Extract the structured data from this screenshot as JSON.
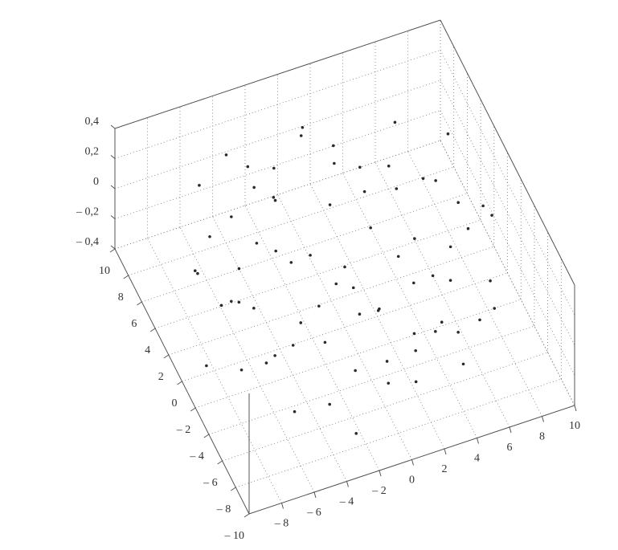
{
  "chart_data": {
    "type": "scatter3d",
    "color": "#2a2a2a",
    "grid": true,
    "xlim": [
      -10,
      10
    ],
    "ylim": [
      -10,
      10
    ],
    "zlim": [
      -0.4,
      0.4
    ],
    "xticks": [
      {
        "value": -8,
        "label": "– 8"
      },
      {
        "value": -6,
        "label": "– 6"
      },
      {
        "value": -4,
        "label": "– 4"
      },
      {
        "value": -2,
        "label": "– 2"
      },
      0,
      2,
      4,
      6,
      8,
      10
    ],
    "yticks": [
      10,
      8,
      6,
      4,
      2,
      0,
      {
        "value": -2,
        "label": "– 2"
      },
      {
        "value": -4,
        "label": "– 4"
      },
      {
        "value": -6,
        "label": "– 6"
      },
      {
        "value": -8,
        "label": "– 8"
      },
      {
        "value": -10,
        "label": "– 10"
      }
    ],
    "zticks": [
      {
        "value": 0.4,
        "label": "0,4"
      },
      {
        "value": 0.2,
        "label": "0,2"
      },
      0,
      {
        "value": -0.2,
        "label": "– 0,2"
      },
      {
        "value": -0.4,
        "label": "– 0,4"
      }
    ],
    "x": [
      8.5,
      8.31,
      7.77,
      6.88,
      5.69,
      4.25,
      2.63,
      0.89,
      -0.89,
      -2.63,
      -4.25,
      -5.69,
      -6.88,
      -7.77,
      -8.31,
      -8.5,
      -8.31,
      -7.77,
      -6.88,
      -5.69,
      -4.25,
      -2.63,
      -0.89,
      0.89,
      2.63,
      4.25,
      5.69,
      6.88,
      7.77,
      8.31,
      6.5,
      6.28,
      5.63,
      4.6,
      3.25,
      1.68,
      0,
      -1.68,
      -3.25,
      -4.6,
      -5.63,
      -6.28,
      -6.5,
      -6.28,
      -5.63,
      -4.6,
      -3.25,
      -1.68,
      0,
      1.68,
      3.25,
      4.6,
      5.63,
      6.28,
      0,
      2,
      -2,
      4,
      -4,
      1,
      -1,
      3,
      -3,
      0,
      5,
      -5,
      2.5,
      -2.5,
      0.5,
      -0.5,
      3.5,
      -3.5,
      1.5,
      -1.5
    ],
    "y": [
      0,
      1.77,
      3.46,
      5.0,
      6.32,
      7.36,
      8.08,
      8.46,
      8.46,
      8.08,
      7.36,
      6.32,
      5.0,
      3.46,
      1.77,
      0,
      -1.77,
      -3.46,
      -5.0,
      -6.32,
      -7.36,
      -8.08,
      -8.46,
      -8.46,
      -8.08,
      -7.36,
      -6.32,
      -5.0,
      -3.46,
      -1.77,
      0,
      1.68,
      3.25,
      4.6,
      5.63,
      6.28,
      6.5,
      6.28,
      5.63,
      4.6,
      3.25,
      1.68,
      0,
      -1.68,
      -3.25,
      -4.6,
      -5.63,
      -6.28,
      -6.5,
      -6.28,
      -5.63,
      -4.6,
      -3.25,
      -1.68,
      0,
      1,
      -1,
      2,
      -2,
      4,
      -4,
      -3,
      3,
      -5,
      -1,
      1,
      -4.5,
      4.5,
      2.5,
      -2.5,
      0.5,
      -0.5,
      -1.5,
      1.5
    ],
    "z": [
      0.1,
      -0.2,
      0.3,
      -0.1,
      0.2,
      -0.3,
      0,
      0.15,
      -0.25,
      0.05,
      0.25,
      -0.15,
      0.35,
      -0.05,
      0.1,
      -0.35,
      0.2,
      -0.1,
      0.05,
      -0.2,
      0.3,
      -0.3,
      0.15,
      -0.05,
      0.25,
      -0.15,
      0,
      0.1,
      -0.25,
      0.2,
      -0.1,
      0.2,
      -0.3,
      0.1,
      0.05,
      -0.2,
      0.3,
      -0.05,
      0.15,
      -0.25,
      0.25,
      -0.15,
      0,
      0.1,
      -0.1,
      0.2,
      -0.3,
      0.3,
      -0.2,
      0.05,
      -0.05,
      0.15,
      -0.35,
      0.35,
      0,
      0.1,
      -0.1,
      0.2,
      -0.2,
      0.3,
      -0.3,
      0.05,
      -0.05,
      0.15,
      -0.15,
      0.25,
      -0.25,
      0.35,
      -0.35,
      0.1,
      -0.1,
      0.2,
      -0.2,
      0
    ]
  }
}
